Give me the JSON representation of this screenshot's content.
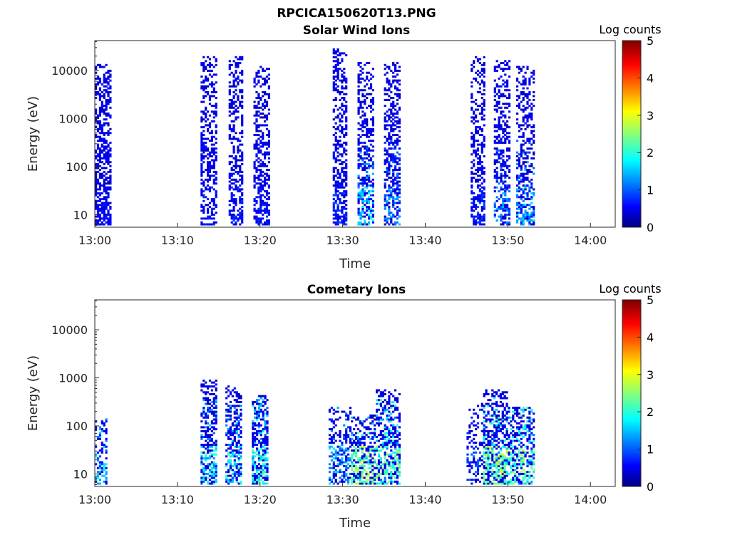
{
  "figure_title": "RPCICA150620T13.PNG",
  "chart_data": [
    {
      "type": "heatmap",
      "title": "Solar Wind Ions",
      "xlabel": "Time",
      "ylabel": "Energy (eV)",
      "y_scale": "log",
      "x_range": [
        "13:00",
        "14:03"
      ],
      "y_range": [
        5.5,
        42000
      ],
      "x_ticks": [
        "13:00",
        "13:10",
        "13:20",
        "13:30",
        "13:40",
        "13:50",
        "14:00"
      ],
      "y_ticks": [
        "10",
        "100",
        "1000",
        "10000"
      ],
      "colorbar": {
        "label": "Log counts",
        "range": [
          0,
          5
        ],
        "ticks": [
          "0",
          "1",
          "2",
          "3",
          "4",
          "5"
        ],
        "colormap": "jet"
      },
      "bursts": [
        {
          "start_min": 0.0,
          "end_min": 1.8,
          "e_min": 6,
          "e_max": 15000,
          "density": 0.65,
          "peak": 0.8
        },
        {
          "start_min": 12.8,
          "end_min": 14.8,
          "e_min": 6,
          "e_max": 20000,
          "density": 0.5,
          "peak": 0.9
        },
        {
          "start_min": 16.2,
          "end_min": 17.8,
          "e_min": 6,
          "e_max": 20000,
          "density": 0.5,
          "peak": 0.9
        },
        {
          "start_min": 19.2,
          "end_min": 21.0,
          "e_min": 6,
          "e_max": 13000,
          "density": 0.55,
          "peak": 0.9
        },
        {
          "start_min": 28.8,
          "end_min": 30.5,
          "e_min": 6,
          "e_max": 30000,
          "density": 0.55,
          "peak": 1.0
        },
        {
          "start_min": 31.8,
          "end_min": 33.6,
          "e_min": 6,
          "e_max": 15000,
          "density": 0.55,
          "peak": 2.0
        },
        {
          "start_min": 35.0,
          "end_min": 37.0,
          "e_min": 6,
          "e_max": 15000,
          "density": 0.55,
          "peak": 1.6
        },
        {
          "start_min": 45.5,
          "end_min": 47.2,
          "e_min": 6,
          "e_max": 20000,
          "density": 0.5,
          "peak": 1.0
        },
        {
          "start_min": 48.3,
          "end_min": 50.3,
          "e_min": 6,
          "e_max": 16000,
          "density": 0.5,
          "peak": 1.6
        },
        {
          "start_min": 51.0,
          "end_min": 53.2,
          "e_min": 6,
          "e_max": 13000,
          "density": 0.5,
          "peak": 1.8
        }
      ]
    },
    {
      "type": "heatmap",
      "title": "Cometary Ions",
      "xlabel": "Time",
      "ylabel": "Energy (eV)",
      "y_scale": "log",
      "x_range": [
        "13:00",
        "14:03"
      ],
      "y_range": [
        5.5,
        42000
      ],
      "x_ticks": [
        "13:00",
        "13:10",
        "13:20",
        "13:30",
        "13:40",
        "13:50",
        "14:00"
      ],
      "y_ticks": [
        "10",
        "100",
        "1000",
        "10000"
      ],
      "colorbar": {
        "label": "Log counts",
        "range": [
          0,
          5
        ],
        "ticks": [
          "0",
          "1",
          "2",
          "3",
          "4",
          "5"
        ],
        "colormap": "jet"
      },
      "bursts": [
        {
          "start_min": 0.0,
          "end_min": 1.5,
          "e_min": 6,
          "e_max": 150,
          "density": 0.45,
          "peak": 2.0
        },
        {
          "start_min": 12.8,
          "end_min": 14.8,
          "e_min": 6,
          "e_max": 900,
          "density": 0.6,
          "peak": 2.2
        },
        {
          "start_min": 15.8,
          "end_min": 17.8,
          "e_min": 6,
          "e_max": 800,
          "density": 0.55,
          "peak": 2.2
        },
        {
          "start_min": 19.0,
          "end_min": 21.0,
          "e_min": 6,
          "e_max": 450,
          "density": 0.65,
          "peak": 2.4
        },
        {
          "start_min": 28.3,
          "end_min": 31.0,
          "e_min": 6,
          "e_max": 250,
          "density": 0.4,
          "peak": 1.8
        },
        {
          "start_min": 31.0,
          "end_min": 34.0,
          "e_min": 6,
          "e_max": 180,
          "density": 0.65,
          "peak": 3.0
        },
        {
          "start_min": 34.0,
          "end_min": 37.0,
          "e_min": 6,
          "e_max": 600,
          "density": 0.6,
          "peak": 2.8
        },
        {
          "start_min": 45.0,
          "end_min": 47.0,
          "e_min": 6,
          "e_max": 300,
          "density": 0.35,
          "peak": 1.2
        },
        {
          "start_min": 47.0,
          "end_min": 50.0,
          "e_min": 6,
          "e_max": 600,
          "density": 0.65,
          "peak": 3.0
        },
        {
          "start_min": 50.0,
          "end_min": 53.2,
          "e_min": 6,
          "e_max": 250,
          "density": 0.6,
          "peak": 2.8
        }
      ]
    }
  ]
}
